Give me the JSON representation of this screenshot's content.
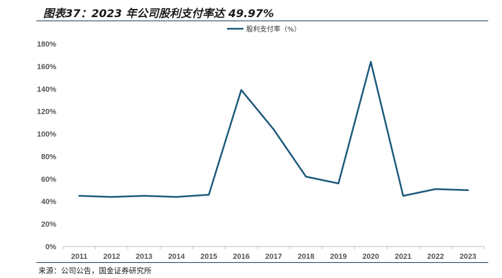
{
  "title": "图表37：2023 年公司股利支付率达 49.97%",
  "source": "来源：公司公告，国金证券研究所",
  "colors": {
    "line": "#1e5a7c",
    "rule": "#1f3b5a",
    "axis": "#bfbfbf"
  },
  "chart_data": {
    "type": "line",
    "title": "图表37：2023 年公司股利支付率达 49.97%",
    "xlabel": "",
    "ylabel": "",
    "categories": [
      "2011",
      "2012",
      "2013",
      "2014",
      "2015",
      "2016",
      "2017",
      "2018",
      "2019",
      "2020",
      "2021",
      "2022",
      "2023"
    ],
    "series": [
      {
        "name": "股利支付率（%）",
        "values": [
          45,
          44,
          45,
          44,
          46,
          139,
          104,
          62,
          56,
          164,
          45,
          51,
          49.97
        ]
      }
    ],
    "ylim": [
      0,
      180
    ],
    "yticks": [
      "0%",
      "20%",
      "40%",
      "60%",
      "80%",
      "100%",
      "120%",
      "140%",
      "160%",
      "180%"
    ],
    "grid": false,
    "legend_position": "top-center"
  }
}
